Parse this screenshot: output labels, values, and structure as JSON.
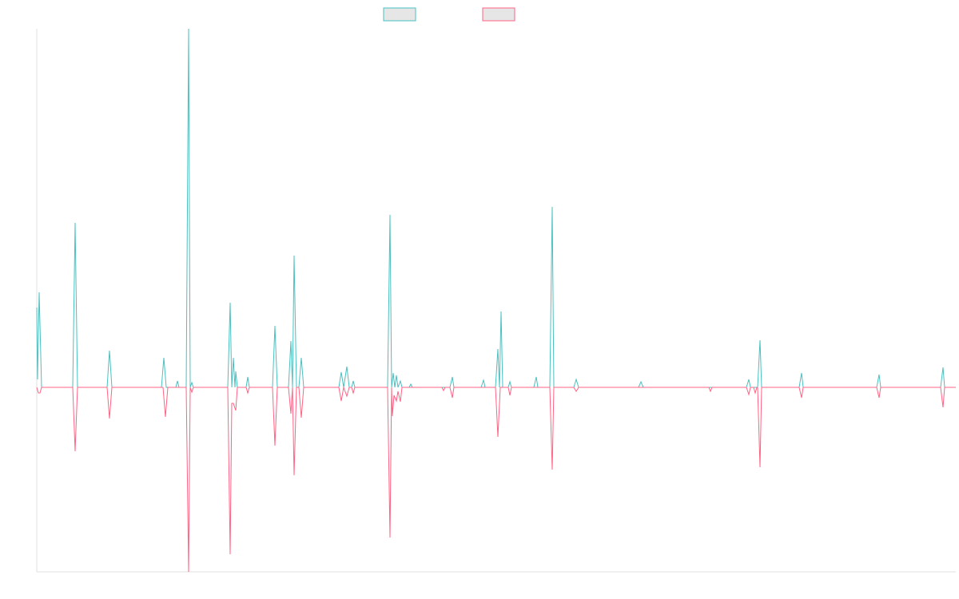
{
  "chart_data": {
    "type": "line",
    "xlim": [
      0,
      1150
    ],
    "ylim": [
      -231,
      449
    ],
    "series": [
      {
        "color": "#4bc0c0",
        "x": [
          0,
          1,
          3,
          6,
          45,
          48,
          51,
          88,
          91,
          94,
          156,
          159,
          162,
          174,
          176,
          178,
          187,
          190,
          192,
          194,
          196,
          239,
          242,
          244,
          246,
          248,
          249,
          251,
          262,
          264,
          266,
          295,
          298,
          301,
          315,
          318,
          320,
          322,
          325,
          328,
          331,
          334,
          378,
          381,
          384,
          388,
          391,
          394,
          396,
          398,
          439,
          442,
          444,
          446,
          448,
          450,
          452,
          455,
          457,
          466,
          468,
          470,
          517,
          520,
          522,
          556,
          559,
          561,
          574,
          577,
          579,
          581,
          583,
          590,
          592,
          594,
          622,
          625,
          627,
          642,
          645,
          647,
          672,
          675,
          678,
          753,
          756,
          759,
          888,
          891,
          893,
          902,
          905,
          907,
          954,
          957,
          959,
          1051,
          1054,
          1056,
          1131,
          1134,
          1136,
          1150
        ],
        "values": [
          100,
          10,
          119,
          0,
          0,
          206,
          0,
          0,
          46,
          0,
          0,
          37,
          0,
          0,
          8,
          0,
          0,
          449,
          0,
          6,
          0,
          0,
          106,
          0,
          37,
          0,
          20,
          0,
          0,
          13,
          0,
          0,
          77,
          0,
          0,
          58,
          0,
          165,
          0,
          0,
          37,
          0,
          0,
          19,
          0,
          26,
          0,
          0,
          8,
          0,
          0,
          216,
          0,
          18,
          0,
          15,
          0,
          8,
          0,
          0,
          4,
          0,
          0,
          13,
          0,
          0,
          9,
          0,
          0,
          48,
          0,
          95,
          0,
          0,
          7,
          0,
          0,
          13,
          0,
          0,
          226,
          0,
          0,
          10,
          0,
          0,
          7,
          0,
          0,
          10,
          0,
          0,
          59,
          0,
          0,
          18,
          0,
          0,
          16,
          0,
          0,
          25,
          0,
          0
        ]
      },
      {
        "color": "#ff6384",
        "x": [
          0,
          2,
          4,
          6,
          45,
          48,
          51,
          88,
          91,
          94,
          158,
          161,
          164,
          187,
          190,
          192,
          194,
          196,
          239,
          242,
          244,
          246,
          249,
          251,
          262,
          264,
          266,
          295,
          298,
          301,
          315,
          318,
          320,
          322,
          325,
          328,
          331,
          334,
          378,
          381,
          384,
          388,
          391,
          394,
          396,
          398,
          439,
          442,
          444,
          445,
          447,
          450,
          452,
          455,
          457,
          507,
          509,
          511,
          517,
          520,
          522,
          574,
          577,
          580,
          590,
          592,
          594,
          642,
          645,
          647,
          672,
          675,
          678,
          841,
          843,
          845,
          888,
          891,
          893,
          897,
          899,
          901,
          902,
          905,
          907,
          954,
          957,
          959,
          1051,
          1054,
          1056,
          1131,
          1134,
          1136,
          1150
        ],
        "values": [
          0,
          -7,
          -7,
          0,
          0,
          -80,
          0,
          0,
          -39,
          0,
          0,
          -37,
          0,
          0,
          -231,
          0,
          -6,
          0,
          0,
          -209,
          -20,
          -20,
          -29,
          0,
          0,
          -7,
          0,
          0,
          -73,
          0,
          0,
          -33,
          0,
          -110,
          0,
          0,
          -38,
          0,
          0,
          -17,
          0,
          -11,
          0,
          0,
          -7,
          0,
          0,
          -188,
          0,
          -36,
          -10,
          -17,
          -5,
          -18,
          0,
          0,
          -4,
          0,
          0,
          -13,
          0,
          0,
          -62,
          0,
          0,
          -10,
          0,
          0,
          -103,
          0,
          0,
          -5,
          0,
          0,
          -5,
          0,
          0,
          -9,
          0,
          0,
          -7,
          0,
          0,
          -100,
          0,
          0,
          -13,
          0,
          0,
          -13,
          0,
          0,
          -25,
          0,
          0
        ]
      }
    ]
  }
}
